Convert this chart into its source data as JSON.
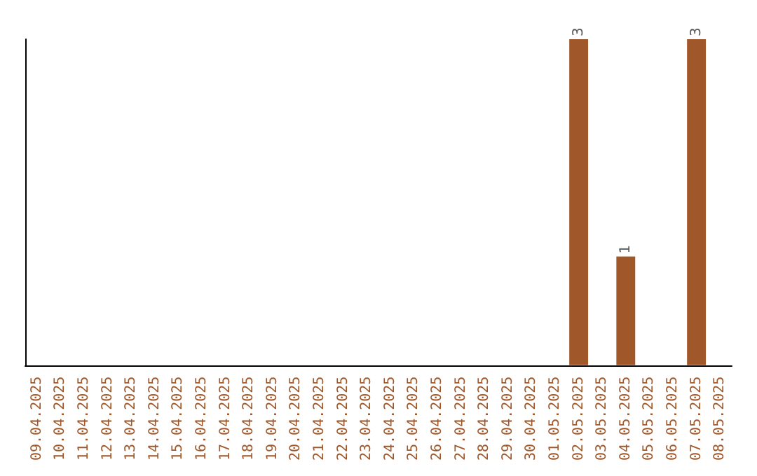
{
  "chart_data": {
    "type": "bar",
    "categories": [
      "09.04.2025",
      "10.04.2025",
      "11.04.2025",
      "12.04.2025",
      "13.04.2025",
      "14.04.2025",
      "15.04.2025",
      "16.04.2025",
      "17.04.2025",
      "18.04.2025",
      "19.04.2025",
      "20.04.2025",
      "21.04.2025",
      "22.04.2025",
      "23.04.2025",
      "24.04.2025",
      "25.04.2025",
      "26.04.2025",
      "27.04.2025",
      "28.04.2025",
      "29.04.2025",
      "30.04.2025",
      "01.05.2025",
      "02.05.2025",
      "03.05.2025",
      "04.05.2025",
      "05.05.2025",
      "06.05.2025",
      "07.05.2025",
      "08.05.2025"
    ],
    "values": [
      null,
      null,
      null,
      null,
      null,
      null,
      null,
      null,
      null,
      null,
      null,
      null,
      null,
      null,
      null,
      null,
      null,
      null,
      null,
      null,
      null,
      null,
      null,
      3,
      null,
      1,
      null,
      null,
      3,
      null
    ],
    "data_labels": true,
    "color": "#a0582a",
    "tick_labels": "x",
    "grid": false
  }
}
